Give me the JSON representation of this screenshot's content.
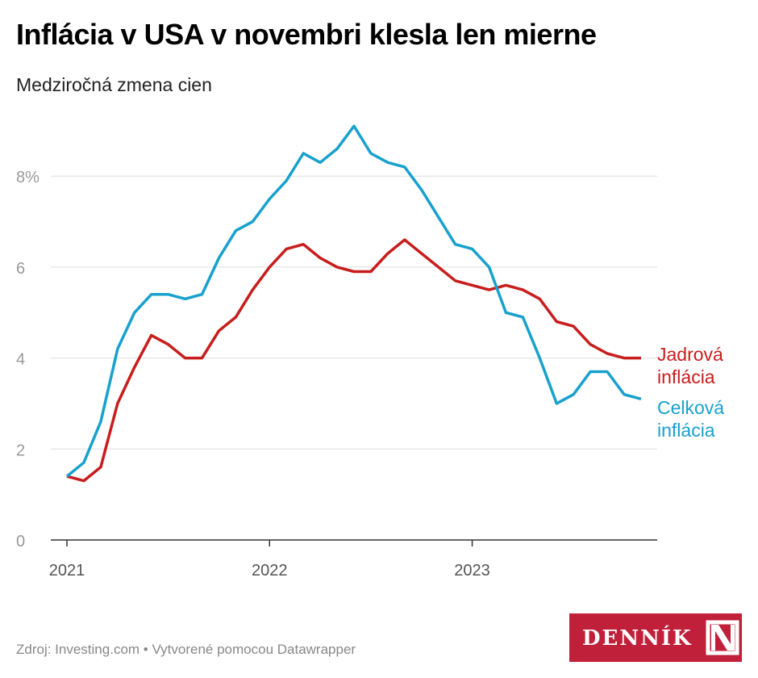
{
  "title": "Inflácia v USA v novembri klesla len mierne",
  "subtitle": "Medziročná zmena cien",
  "footer": "Zdroj: Investing.com • Vytvorené pomocou Datawrapper",
  "logo": "DENNÍK N",
  "chart_data": {
    "type": "line",
    "title": "Inflácia v USA v novembri klesla len mierne",
    "subtitle": "Medziročná zmena cien",
    "x_start": "2021-01",
    "x_end": "2023-11",
    "x_frequency": "monthly",
    "x_ticks": [
      "2021",
      "2022",
      "2023"
    ],
    "y_ticks": [
      "0",
      "2",
      "4",
      "6",
      "8%"
    ],
    "ylim": [
      0,
      9.3
    ],
    "grid": true,
    "series": [
      {
        "name": "Jadrová inflácia",
        "label_lines": [
          "Jadrová",
          "inflácia"
        ],
        "color": "#c71e1d",
        "values": [
          1.4,
          1.3,
          1.6,
          3.0,
          3.8,
          4.5,
          4.3,
          4.0,
          4.0,
          4.6,
          4.9,
          5.5,
          6.0,
          6.4,
          6.5,
          6.2,
          6.0,
          5.9,
          5.9,
          6.3,
          6.6,
          6.3,
          6.0,
          5.7,
          5.6,
          5.5,
          5.6,
          5.5,
          5.3,
          4.8,
          4.7,
          4.3,
          4.1,
          4.0,
          4.0
        ]
      },
      {
        "name": "Celková inflácia",
        "label_lines": [
          "Celková",
          "inflácia"
        ],
        "color": "#18a1cd",
        "values": [
          1.4,
          1.7,
          2.6,
          4.2,
          5.0,
          5.4,
          5.4,
          5.3,
          5.4,
          6.2,
          6.8,
          7.0,
          7.5,
          7.9,
          8.5,
          8.3,
          8.6,
          9.1,
          8.5,
          8.3,
          8.2,
          7.7,
          7.1,
          6.5,
          6.4,
          6.0,
          5.0,
          4.9,
          4.0,
          3.0,
          3.2,
          3.7,
          3.7,
          3.2,
          3.1
        ]
      }
    ]
  }
}
